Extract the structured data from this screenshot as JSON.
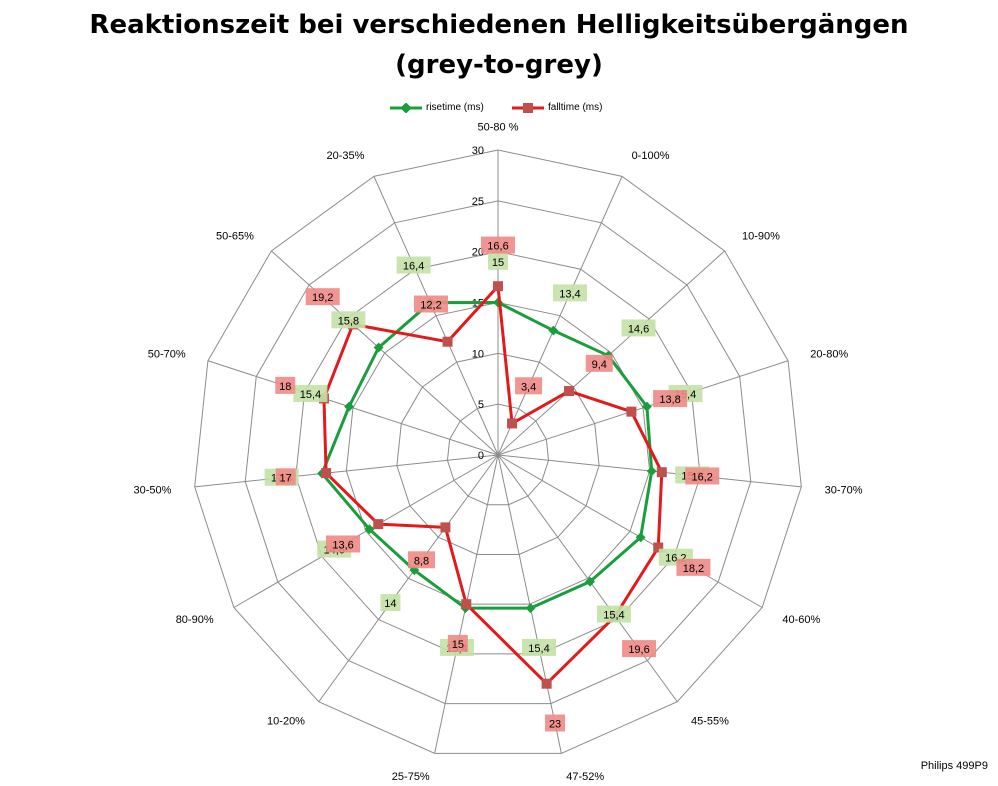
{
  "chart_data": {
    "type": "radar",
    "title": "Reaktionszeit bei verschiedenen Helligkeitsübergängen",
    "subtitle": "(grey-to-grey)",
    "categories": [
      "50-80 %",
      "0-100%",
      "10-90%",
      "20-80%",
      "30-70%",
      "40-60%",
      "45-55%",
      "47-52%",
      "25-75%",
      "10-20%",
      "80-90%",
      "30-50%",
      "50-70%",
      "50-65%",
      "20-35%"
    ],
    "series": [
      {
        "name": "risetime (ms)",
        "color": "#1a9e3c",
        "label_bg": "#c3e1a6",
        "values": [
          15,
          13.4,
          14.6,
          15.4,
          15.2,
          16.2,
          15.4,
          15.4,
          15.4,
          14,
          14.6,
          17.4,
          15.4,
          15.8,
          16.4
        ],
        "labels": [
          "15",
          "13,4",
          "14,6",
          "15,4",
          "15,2",
          "16,2",
          "15,4",
          "15,4",
          "15,4",
          "14",
          "14,6",
          "17,4",
          "15,4",
          "15,8",
          "16,4"
        ]
      },
      {
        "name": "falltime (ms)",
        "color": "#e31a1c",
        "label_bg": "#f08a86",
        "values": [
          16.6,
          3.4,
          9.4,
          13.8,
          16.2,
          18.2,
          19.6,
          23,
          15,
          8.8,
          13.6,
          17,
          18,
          19.2,
          12.2
        ],
        "labels": [
          "16,6",
          "3,4",
          "9,4",
          "13,8",
          "16,2",
          "18,2",
          "19,6",
          "23",
          "15",
          "8,8",
          "13,6",
          "17",
          "18",
          "19,2",
          "12,2"
        ]
      }
    ],
    "r_ticks": [
      0,
      5,
      10,
      15,
      20,
      25,
      30
    ],
    "rlim": [
      0,
      30
    ],
    "grid": true,
    "legend_position": "top"
  },
  "credit": "Philips 499P9"
}
